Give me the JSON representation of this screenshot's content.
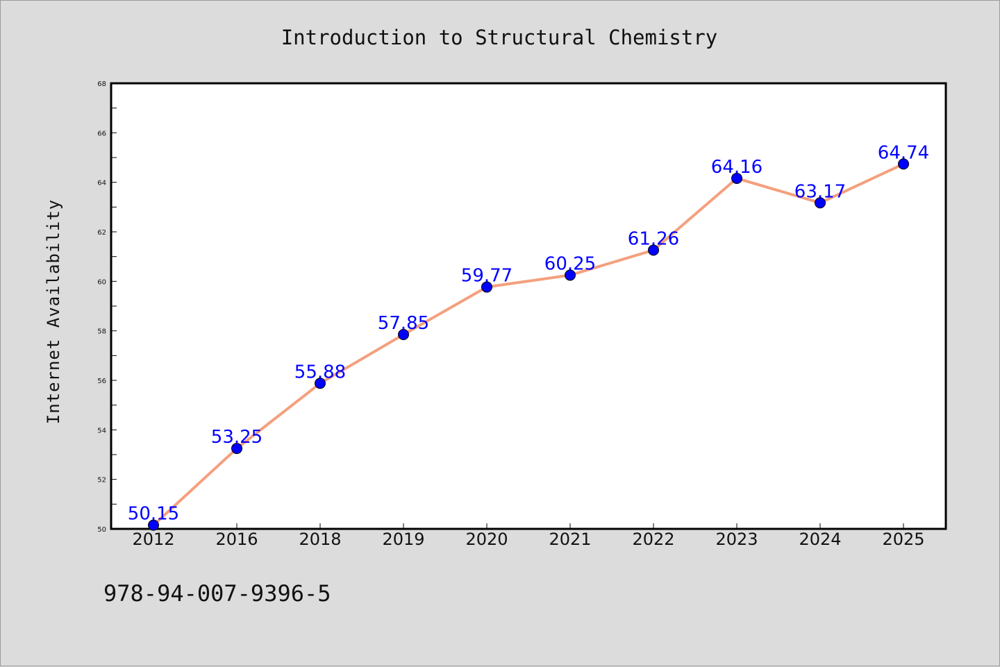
{
  "chart_data": {
    "type": "line",
    "title": "Introduction to Structural Chemistry",
    "xlabel": "",
    "ylabel": "Internet Availability",
    "categories": [
      "2012",
      "2016",
      "2018",
      "2019",
      "2020",
      "2021",
      "2022",
      "2023",
      "2024",
      "2025"
    ],
    "series": [
      {
        "values": [
          50.15,
          53.25,
          55.88,
          57.85,
          59.77,
          60.25,
          61.26,
          64.16,
          63.17,
          64.74
        ],
        "data_labels": [
          "50.15",
          "53.25",
          "55.88",
          "57.85",
          "59.77",
          "60.25",
          "61.26",
          "64.16",
          "63.17",
          "64.74"
        ]
      }
    ],
    "ylim": [
      50,
      68
    ],
    "yticks": [
      "50",
      "52",
      "54",
      "56",
      "58",
      "60",
      "62",
      "64",
      "66",
      "68"
    ],
    "grid": false,
    "legend": "none",
    "colors": {
      "line": "#f4a07e",
      "marker": "#0000ff",
      "data_label": "#0000ff",
      "background": "#dcdcdc",
      "plot_area": "#ffffff"
    }
  },
  "footer": {
    "isbn": "978-94-007-9396-5"
  }
}
